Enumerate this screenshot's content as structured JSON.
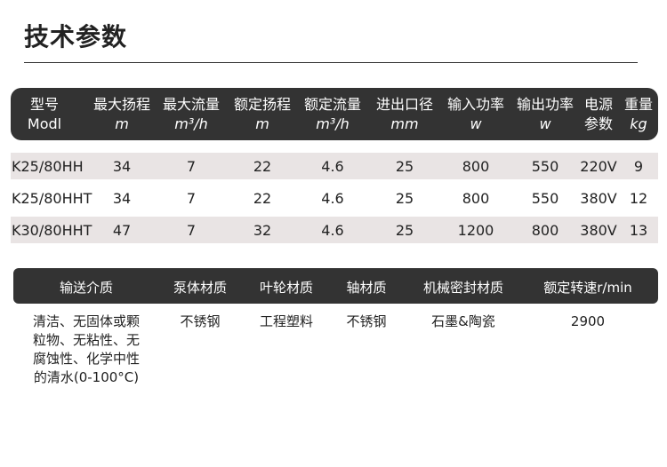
{
  "title": "技术参数",
  "table1": {
    "headers": [
      {
        "name": "型号",
        "unit": "Modl"
      },
      {
        "name": "最大扬程",
        "unit": "m"
      },
      {
        "name": "最大流量",
        "unit": "m³/h"
      },
      {
        "name": "额定扬程",
        "unit": "m"
      },
      {
        "name": "额定流量",
        "unit": "m³/h"
      },
      {
        "name": "进出口径",
        "unit": "mm"
      },
      {
        "name": "输入功率",
        "unit": "w"
      },
      {
        "name": "输出功率",
        "unit": "w"
      },
      {
        "name": "电源",
        "unit": "参数"
      },
      {
        "name": "重量",
        "unit": "kg"
      }
    ],
    "rows": [
      [
        "K25/80HH",
        "34",
        "7",
        "22",
        "4.6",
        "25",
        "800",
        "550",
        "220V",
        "9"
      ],
      [
        "K25/80HHT",
        "34",
        "7",
        "22",
        "4.6",
        "25",
        "800",
        "550",
        "380V",
        "12"
      ],
      [
        "K30/80HHT",
        "47",
        "7",
        "32",
        "4.6",
        "25",
        "1200",
        "800",
        "380V",
        "13"
      ]
    ]
  },
  "table2": {
    "headers": [
      "输送介质",
      "泵体材质",
      "叶轮材质",
      "轴材质",
      "机械密封材质",
      "额定转速r/min"
    ],
    "values": [
      "清洁、无固体或颗粒物、无粘性、无腐蚀性、化学中性的清水(0-100°C)",
      "不锈钢",
      "工程塑料",
      "不锈钢",
      "石墨&陶瓷",
      "2900"
    ]
  }
}
